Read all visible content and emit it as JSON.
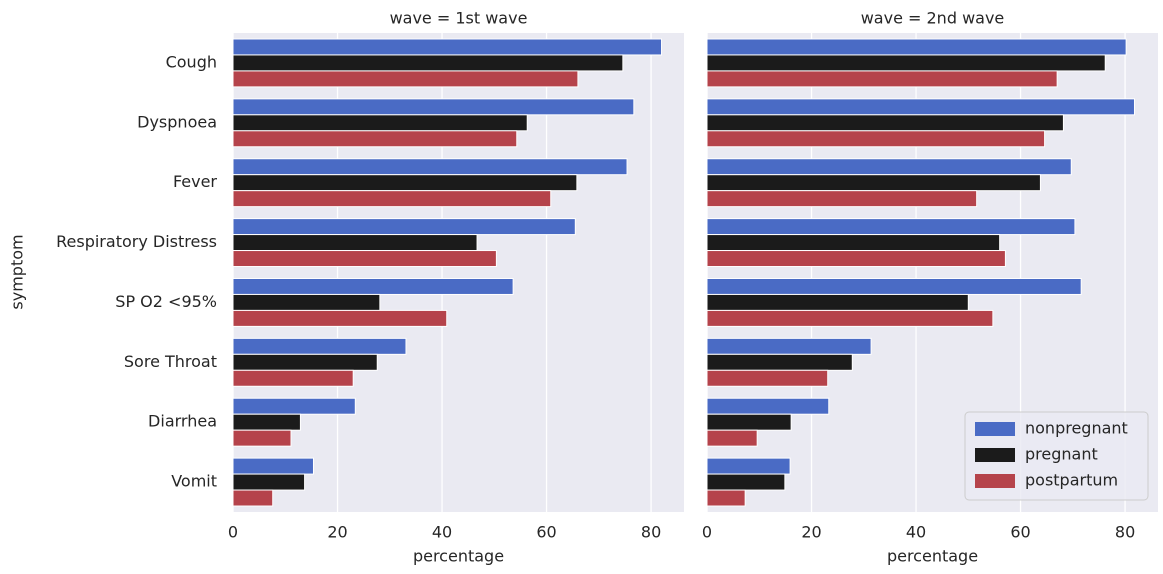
{
  "chart_data": [
    {
      "type": "barh",
      "title": "wave = 1st wave",
      "xlabel": "percentage",
      "ylabel": "symptom",
      "categories": [
        "Cough",
        "Dyspnoea",
        "Fever",
        "Respiratory Distress",
        "SP O2  <95%",
        "Sore Throat",
        "Diarrhea",
        "Vomit"
      ],
      "series": [
        {
          "color": "#4a6bc5",
          "values": [
            82.0,
            76.7,
            75.4,
            65.5,
            53.6,
            33.1,
            23.4,
            15.4
          ]
        },
        {
          "color": "#1b1b1b",
          "values": [
            74.6,
            56.3,
            65.8,
            46.7,
            28.1,
            27.6,
            12.9,
            13.7
          ]
        },
        {
          "color": "#b5434b",
          "values": [
            66.0,
            54.3,
            60.8,
            50.4,
            40.9,
            23.0,
            11.1,
            7.6
          ]
        }
      ],
      "xlim": [
        0,
        86.3
      ],
      "xticks": [
        0,
        20,
        40,
        60,
        80
      ],
      "grid": true
    },
    {
      "type": "barh",
      "title": "wave = 2nd wave",
      "xlabel": "percentage",
      "categories": [
        null,
        null,
        null,
        null,
        null,
        null,
        null,
        null
      ],
      "series": [
        {
          "name": "nonpregnant",
          "color": "#4a6bc5",
          "values": [
            80.2,
            81.8,
            69.7,
            70.4,
            71.6,
            31.4,
            23.3,
            15.9
          ]
        },
        {
          "name": "pregnant",
          "color": "#1b1b1b",
          "values": [
            76.2,
            68.2,
            63.8,
            56.0,
            50.0,
            27.8,
            16.1,
            14.9
          ]
        },
        {
          "name": "postpartum",
          "color": "#b5434b",
          "values": [
            67.0,
            64.6,
            51.6,
            57.1,
            54.7,
            23.1,
            9.6,
            7.3
          ]
        }
      ],
      "xlim": [
        0,
        86.3
      ],
      "xticks": [
        0,
        20,
        40,
        60,
        80
      ],
      "grid": true,
      "legend": "lower right"
    }
  ]
}
